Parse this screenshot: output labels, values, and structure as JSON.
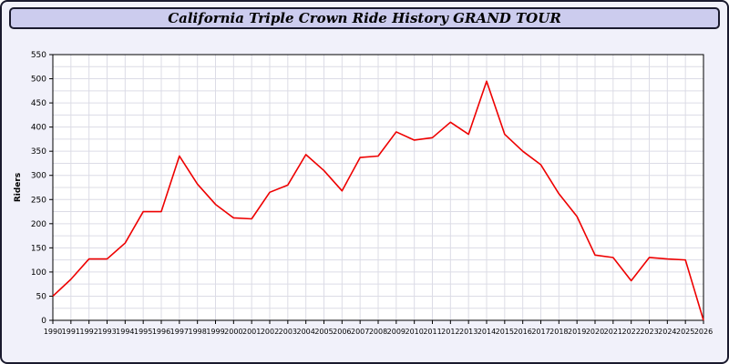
{
  "chart_data": {
    "type": "line",
    "title": "California Triple Crown Ride History GRAND TOUR",
    "ylabel": "Riders",
    "xlabel": "",
    "years": [
      1990,
      1991,
      1992,
      1993,
      1994,
      1995,
      1996,
      1997,
      1998,
      1999,
      2000,
      2001,
      2002,
      2003,
      2004,
      2005,
      2006,
      2007,
      2008,
      2009,
      2010,
      2011,
      2012,
      2013,
      2014,
      2015,
      2016,
      2017,
      2018,
      2019,
      2020,
      2021,
      2022,
      2023,
      2024,
      2025,
      2026
    ],
    "values": [
      50,
      85,
      127,
      127,
      160,
      225,
      225,
      340,
      282,
      240,
      212,
      210,
      265,
      280,
      343,
      310,
      268,
      337,
      340,
      390,
      373,
      378,
      410,
      385,
      495,
      385,
      350,
      322,
      262,
      215,
      135,
      130,
      82,
      130,
      127,
      125,
      0
    ],
    "ylim": [
      0,
      550
    ],
    "yticks": [
      0,
      50,
      100,
      150,
      200,
      250,
      300,
      350,
      400,
      450,
      500,
      550
    ],
    "grid": true,
    "legend": "none",
    "line_color": "#ee0000",
    "plot_bg": "#ffffff",
    "grid_color": "#dcdce6",
    "frame_color": "#000000",
    "titlebar_bg": "#ccccee",
    "page_bg": "#f1f1fa"
  }
}
